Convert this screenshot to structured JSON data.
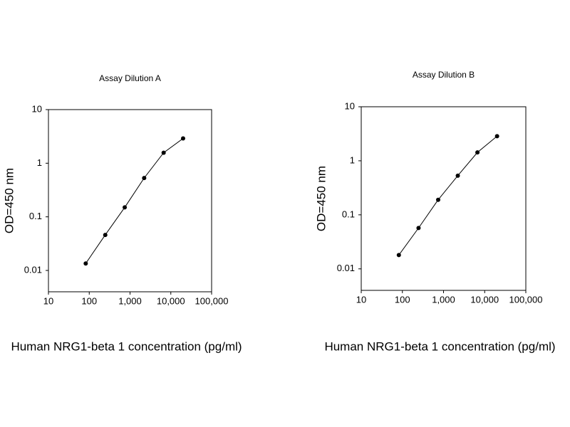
{
  "chart_data": [
    {
      "type": "line",
      "title": "Assay Dilution A",
      "x_label": "Human NRG1-beta 1 concentration (pg/ml)",
      "y_label": "OD=450 nm",
      "x": [
        82,
        247,
        741,
        2222,
        6667,
        20000
      ],
      "series": [
        {
          "color": "#000000",
          "values": [
            0.0135,
            0.046,
            0.15,
            0.53,
            1.57,
            2.9
          ]
        }
      ],
      "xlim": [
        10,
        100000
      ],
      "ylim": [
        0.004,
        10
      ],
      "log_x": true,
      "log_y": true,
      "xticks": [
        10,
        100,
        {
          "value": 1000,
          "label": "1,000"
        },
        {
          "value": 10000,
          "label": "10,000"
        },
        {
          "value": 100000,
          "label": "100,000"
        }
      ],
      "yticks": [
        0.01,
        0.1,
        1,
        10
      ]
    },
    {
      "type": "line",
      "title": "Assay Dilution B",
      "x_label": "Human NRG1-beta 1 concentration (pg/ml)",
      "y_label": "OD=450 nm",
      "x": [
        82,
        247,
        741,
        2222,
        6667,
        20000
      ],
      "series": [
        {
          "color": "#000000",
          "values": [
            0.018,
            0.057,
            0.19,
            0.53,
            1.43,
            2.85
          ]
        }
      ],
      "xlim": [
        10,
        100000
      ],
      "ylim": [
        0.004,
        10
      ],
      "log_x": true,
      "log_y": true,
      "xticks": [
        10,
        100,
        {
          "value": 1000,
          "label": "1,000"
        },
        {
          "value": 10000,
          "label": "10,000"
        },
        {
          "value": 100000,
          "label": "100,000"
        }
      ],
      "yticks": [
        0.01,
        0.1,
        1,
        10
      ]
    }
  ]
}
